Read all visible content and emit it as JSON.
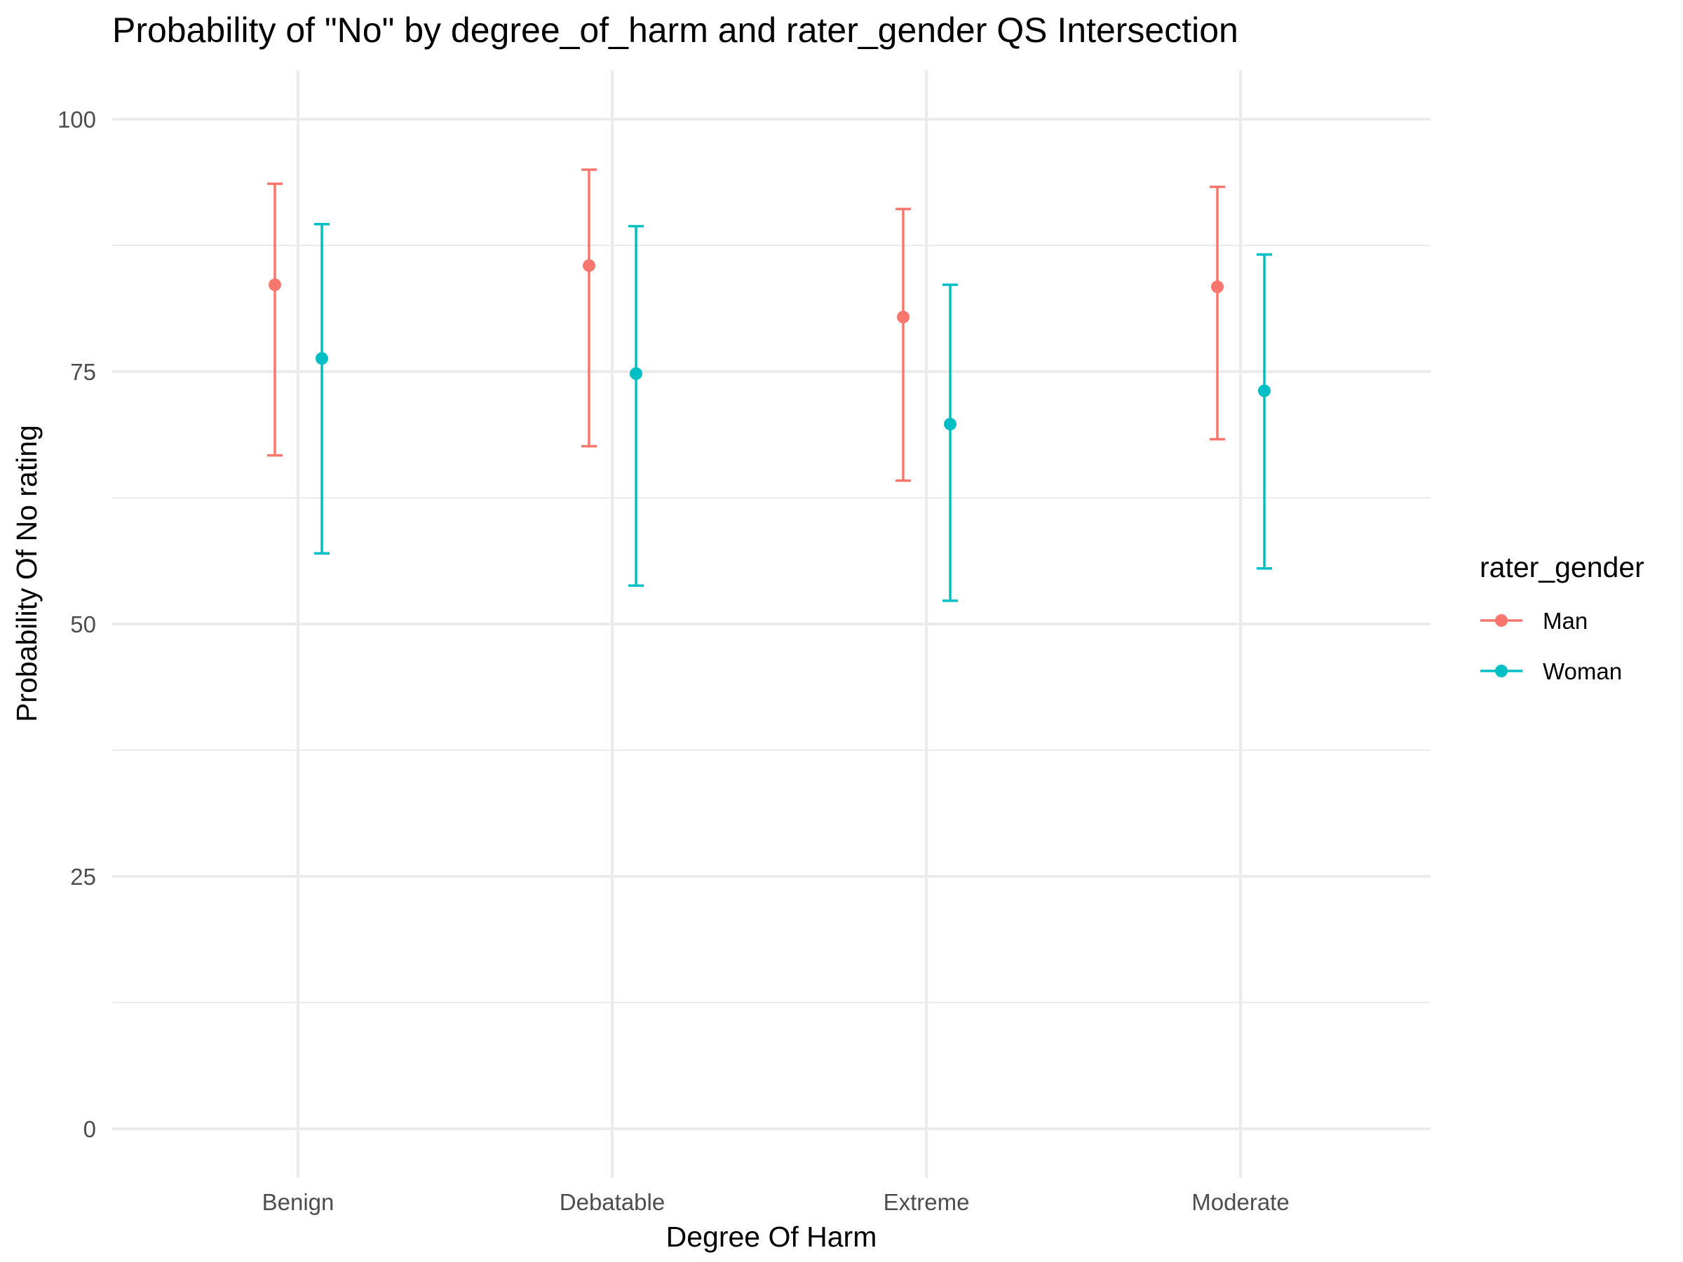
{
  "chart_data": {
    "type": "errorbar",
    "title": "Probability of \"No\" by degree_of_harm and  rater_gender  QS Intersection",
    "xlabel": "Degree Of Harm",
    "ylabel": "Probability Of No rating",
    "categories": [
      "Benign",
      "Debatable",
      "Extreme",
      "Moderate"
    ],
    "ylim": [
      -5,
      105
    ],
    "yticks": [
      0,
      25,
      50,
      75,
      100
    ],
    "grid": true,
    "legend": {
      "title": "rater_gender",
      "position": "right"
    },
    "series": [
      {
        "name": "Man",
        "color": "#F8766D",
        "values": [
          83.6,
          85.5,
          80.4,
          83.4
        ],
        "lower": [
          66.7,
          67.6,
          64.2,
          68.3
        ],
        "upper": [
          93.6,
          95.0,
          91.1,
          93.3
        ]
      },
      {
        "name": "Woman",
        "color": "#00BFC4",
        "values": [
          76.3,
          74.8,
          69.8,
          73.1
        ],
        "lower": [
          57.0,
          53.8,
          52.3,
          55.5
        ],
        "upper": [
          89.6,
          89.4,
          83.6,
          86.6
        ]
      }
    ]
  }
}
